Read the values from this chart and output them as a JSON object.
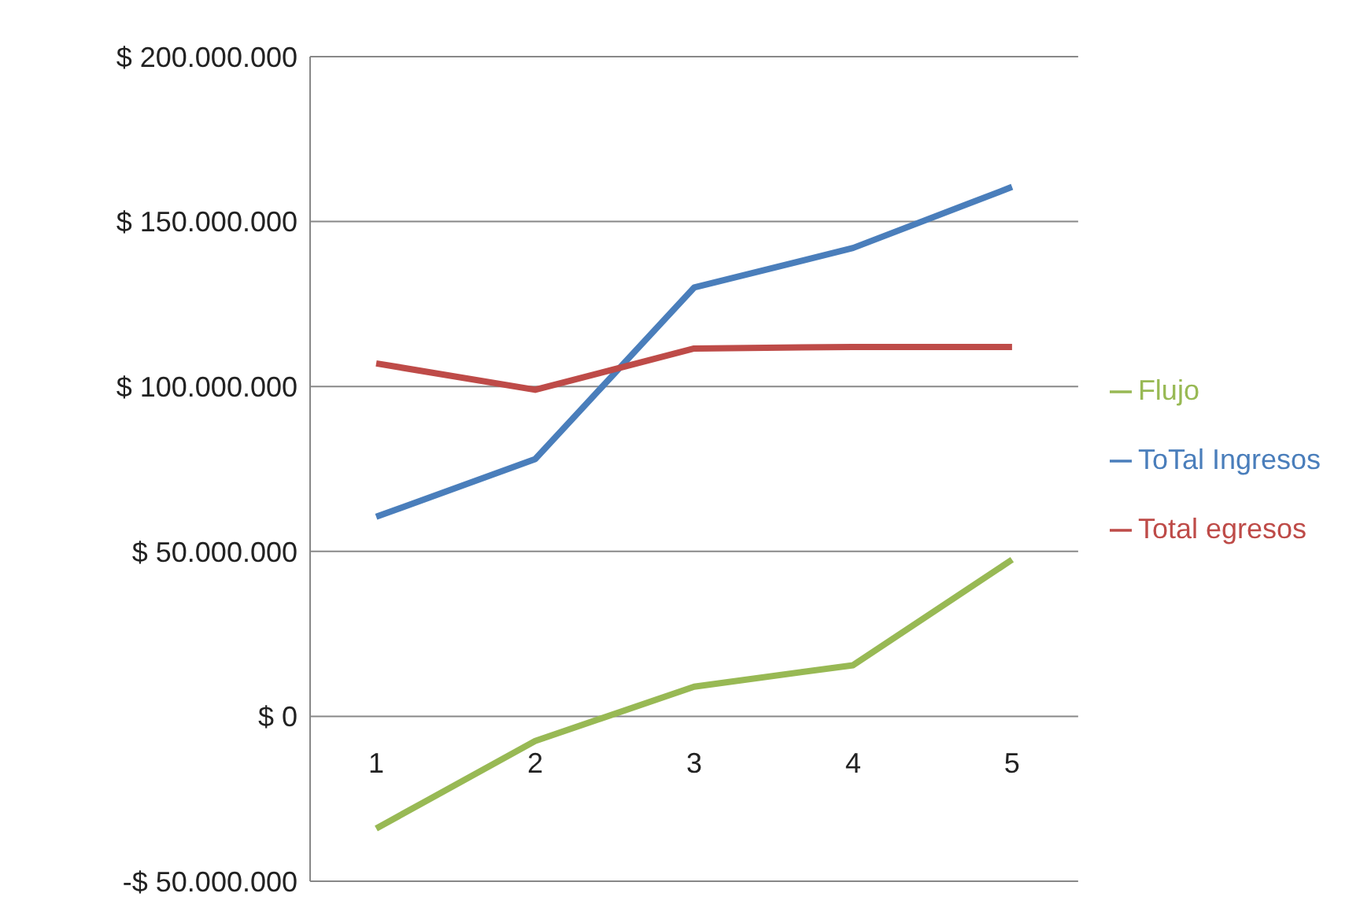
{
  "chart_data": {
    "type": "line",
    "categories": [
      "1",
      "2",
      "3",
      "4",
      "5"
    ],
    "series": [
      {
        "name": "ToTal Ingresos",
        "color": "#4a7ebb",
        "values": [
          60500000,
          78000000,
          130000000,
          142000000,
          160500000
        ]
      },
      {
        "name": "Total egresos",
        "color": "#be4b48",
        "values": [
          107000000,
          99000000,
          111500000,
          112000000,
          112000000
        ]
      },
      {
        "name": "Flujo",
        "color": "#98b954",
        "values": [
          -34000000,
          -7500000,
          9000000,
          15500000,
          47500000
        ]
      }
    ],
    "ylim": [
      -50000000,
      200000000
    ],
    "yticks": [
      {
        "value": -50000000,
        "label": "-$ 50.000.000"
      },
      {
        "value": 0,
        "label": "$ 0"
      },
      {
        "value": 50000000,
        "label": "$ 50.000.000"
      },
      {
        "value": 100000000,
        "label": "$ 100.000.000"
      },
      {
        "value": 150000000,
        "label": "$ 150.000.000"
      },
      {
        "value": 200000000,
        "label": "$ 200.000.000"
      }
    ],
    "grid": "y",
    "legend": "right",
    "marker": "none",
    "line_style": "solid"
  }
}
